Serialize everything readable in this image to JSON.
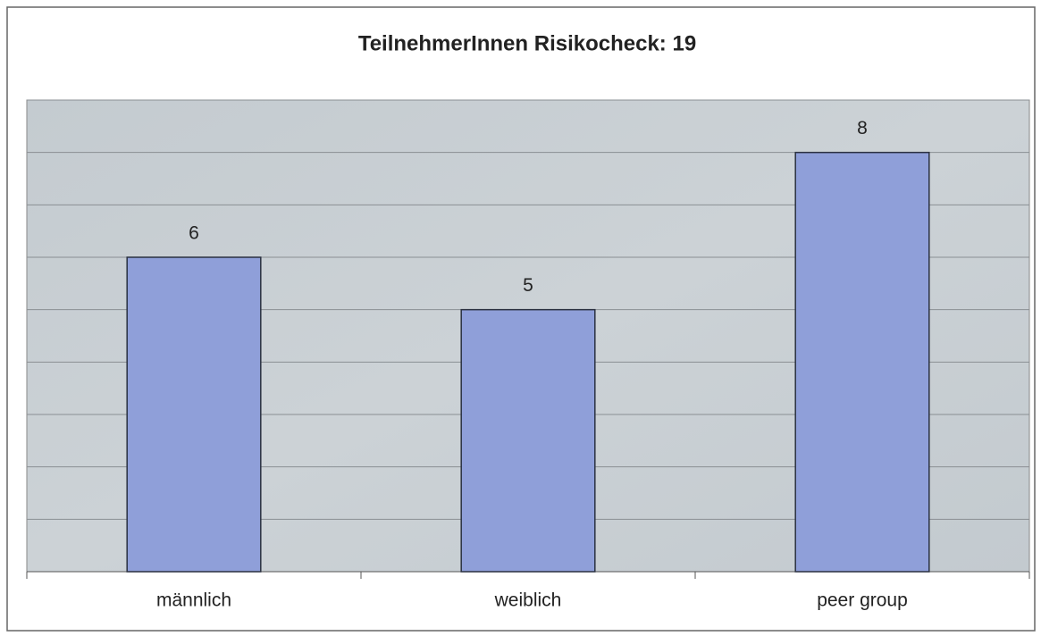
{
  "chart_data": {
    "type": "bar",
    "title": "TeilnehmerInnen Risikocheck: 19",
    "categories": [
      "männlich",
      "weiblich",
      "peer group"
    ],
    "values": [
      6,
      5,
      8
    ],
    "color": "#8f9fd9",
    "ylim": [
      0,
      9
    ],
    "yticks": [
      0,
      1,
      2,
      3,
      4,
      5,
      6,
      7,
      8,
      9
    ],
    "grid": true
  }
}
